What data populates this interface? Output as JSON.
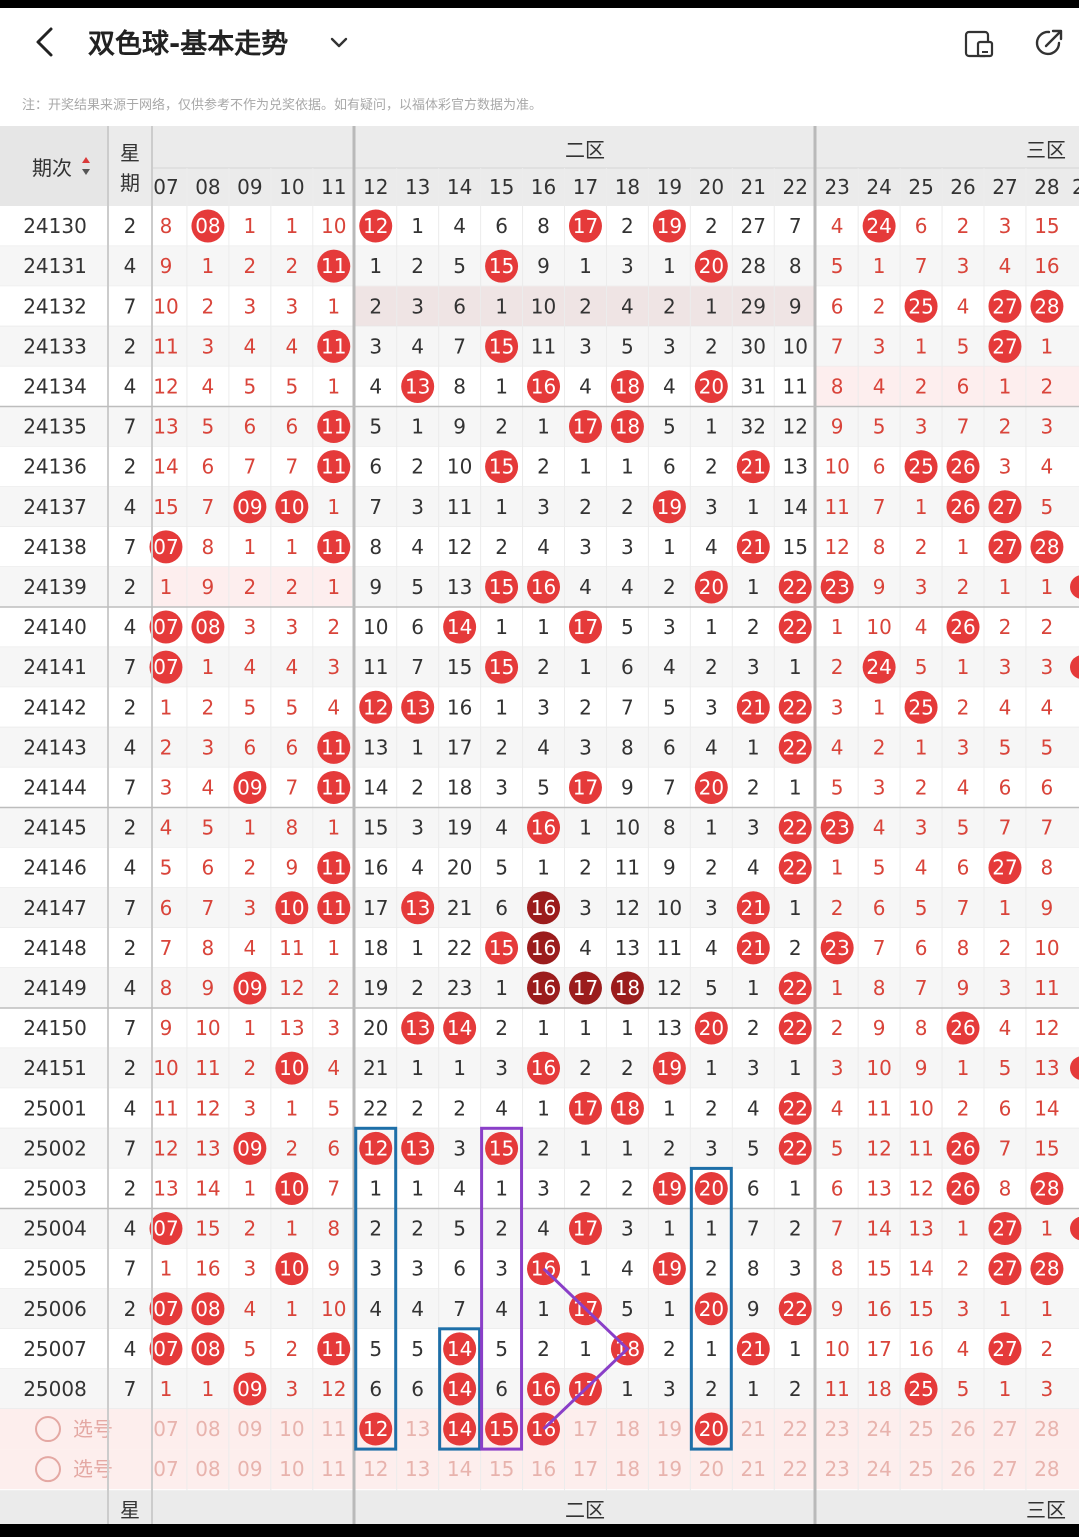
{
  "header": {
    "title": "双色球-基本走势",
    "note": "注：开奖结果来源于网络，仅供参考不作为兑奖依据。如有疑问，以福体彩官方数据为准。",
    "icons": [
      "back-icon",
      "chevron-down-icon",
      "phone-layout-icon",
      "share-icon"
    ]
  },
  "table": {
    "col_period": "期次",
    "col_week": [
      "星",
      "期"
    ],
    "zone2": "二区",
    "zone3": "三区",
    "numbers": [
      "07",
      "08",
      "09",
      "10",
      "11",
      "12",
      "13",
      "14",
      "15",
      "16",
      "17",
      "18",
      "19",
      "20",
      "21",
      "22",
      "23",
      "24",
      "25",
      "26",
      "27",
      "28"
    ],
    "select_label": "选号",
    "footer_week": "星",
    "footer_period": "-"
  },
  "colors": {
    "ball": "#e53a3a",
    "ball_dark": "#9b1c1c",
    "text_red": "#d9443a",
    "box_blue": "#1e6fa8",
    "box_purple": "#8a3fc8"
  },
  "rows": [
    {
      "period": "24130",
      "week": "2",
      "cells": [
        "8",
        "08",
        "1",
        "1",
        "10",
        "12",
        "1",
        "4",
        "6",
        "8",
        "17",
        "2",
        "19",
        "2",
        "27",
        "7",
        "4",
        "24",
        "6",
        "2",
        "3",
        "15"
      ]
    },
    {
      "period": "24131",
      "week": "4",
      "cells": [
        "9",
        "1",
        "2",
        "2",
        "11",
        "1",
        "2",
        "5",
        "15",
        "9",
        "1",
        "3",
        "1",
        "20",
        "28",
        "8",
        "5",
        "1",
        "7",
        "3",
        "4",
        "16"
      ]
    },
    {
      "period": "24132",
      "week": "7",
      "cells": [
        "10",
        "2",
        "3",
        "3",
        "1",
        "2",
        "3",
        "6",
        "1",
        "10",
        "2",
        "4",
        "2",
        "1",
        "29",
        "9",
        "6",
        "2",
        "25",
        "4",
        "27",
        "28"
      ]
    },
    {
      "period": "24133",
      "week": "2",
      "cells": [
        "11",
        "3",
        "4",
        "4",
        "11",
        "3",
        "4",
        "7",
        "15",
        "11",
        "3",
        "5",
        "3",
        "2",
        "30",
        "10",
        "7",
        "3",
        "1",
        "5",
        "27",
        "1"
      ]
    },
    {
      "period": "24134",
      "week": "4",
      "cells": [
        "12",
        "4",
        "5",
        "5",
        "1",
        "4",
        "13",
        "8",
        "1",
        "16",
        "4",
        "18",
        "4",
        "20",
        "31",
        "11",
        "8",
        "4",
        "2",
        "6",
        "1",
        "2"
      ]
    },
    {
      "period": "24135",
      "week": "7",
      "cells": [
        "13",
        "5",
        "6",
        "6",
        "11",
        "5",
        "1",
        "9",
        "2",
        "1",
        "17",
        "18",
        "5",
        "1",
        "32",
        "12",
        "9",
        "5",
        "3",
        "7",
        "2",
        "3"
      ]
    },
    {
      "period": "24136",
      "week": "2",
      "cells": [
        "14",
        "6",
        "7",
        "7",
        "11",
        "6",
        "2",
        "10",
        "15",
        "2",
        "1",
        "1",
        "6",
        "2",
        "21",
        "13",
        "10",
        "6",
        "25",
        "26",
        "3",
        "4"
      ]
    },
    {
      "period": "24137",
      "week": "4",
      "cells": [
        "15",
        "7",
        "09",
        "10",
        "1",
        "7",
        "3",
        "11",
        "1",
        "3",
        "2",
        "2",
        "19",
        "3",
        "1",
        "14",
        "11",
        "7",
        "1",
        "26",
        "27",
        "5"
      ]
    },
    {
      "period": "24138",
      "week": "7",
      "cells": [
        "07",
        "8",
        "1",
        "1",
        "11",
        "8",
        "4",
        "12",
        "2",
        "4",
        "3",
        "3",
        "1",
        "4",
        "21",
        "15",
        "12",
        "8",
        "2",
        "1",
        "27",
        "28"
      ]
    },
    {
      "period": "24139",
      "week": "2",
      "cells": [
        "1",
        "9",
        "2",
        "2",
        "1",
        "9",
        "5",
        "13",
        "15",
        "16",
        "4",
        "4",
        "2",
        "20",
        "1",
        "22",
        "23",
        "9",
        "3",
        "2",
        "1",
        "1"
      ]
    },
    {
      "period": "24140",
      "week": "4",
      "cells": [
        "07",
        "08",
        "3",
        "3",
        "2",
        "10",
        "6",
        "14",
        "1",
        "1",
        "17",
        "5",
        "3",
        "1",
        "2",
        "22",
        "1",
        "10",
        "4",
        "26",
        "2",
        "2"
      ]
    },
    {
      "period": "24141",
      "week": "7",
      "cells": [
        "07",
        "1",
        "4",
        "4",
        "3",
        "11",
        "7",
        "15",
        "15",
        "2",
        "1",
        "6",
        "4",
        "2",
        "3",
        "1",
        "2",
        "24",
        "5",
        "1",
        "3",
        "3"
      ]
    },
    {
      "period": "24142",
      "week": "2",
      "cells": [
        "1",
        "2",
        "5",
        "5",
        "4",
        "12",
        "13",
        "16",
        "1",
        "3",
        "2",
        "7",
        "5",
        "3",
        "21",
        "22",
        "3",
        "1",
        "25",
        "2",
        "4",
        "4"
      ]
    },
    {
      "period": "24143",
      "week": "4",
      "cells": [
        "2",
        "3",
        "6",
        "6",
        "11",
        "13",
        "1",
        "17",
        "2",
        "4",
        "3",
        "8",
        "6",
        "4",
        "1",
        "22",
        "4",
        "2",
        "1",
        "3",
        "5",
        "5"
      ]
    },
    {
      "period": "24144",
      "week": "7",
      "cells": [
        "3",
        "4",
        "09",
        "7",
        "11",
        "14",
        "2",
        "18",
        "3",
        "5",
        "17",
        "9",
        "7",
        "20",
        "2",
        "1",
        "5",
        "3",
        "2",
        "4",
        "6",
        "6"
      ]
    },
    {
      "period": "24145",
      "week": "2",
      "cells": [
        "4",
        "5",
        "1",
        "8",
        "1",
        "15",
        "3",
        "19",
        "4",
        "16",
        "1",
        "10",
        "8",
        "1",
        "3",
        "22",
        "23",
        "4",
        "3",
        "5",
        "7",
        "7"
      ]
    },
    {
      "period": "24146",
      "week": "4",
      "cells": [
        "5",
        "6",
        "2",
        "9",
        "11",
        "16",
        "4",
        "20",
        "5",
        "1",
        "2",
        "11",
        "9",
        "2",
        "4",
        "22",
        "1",
        "5",
        "4",
        "6",
        "27",
        "8"
      ]
    },
    {
      "period": "24147",
      "week": "7",
      "cells": [
        "6",
        "7",
        "3",
        "10",
        "11",
        "17",
        "13",
        "21",
        "6",
        "16",
        "3",
        "12",
        "10",
        "3",
        "21",
        "1",
        "2",
        "6",
        "5",
        "7",
        "1",
        "9"
      ]
    },
    {
      "period": "24148",
      "week": "2",
      "cells": [
        "7",
        "8",
        "4",
        "11",
        "1",
        "18",
        "1",
        "22",
        "15",
        "16",
        "4",
        "13",
        "11",
        "4",
        "21",
        "2",
        "23",
        "7",
        "6",
        "8",
        "2",
        "10"
      ]
    },
    {
      "period": "24149",
      "week": "4",
      "cells": [
        "8",
        "9",
        "09",
        "12",
        "2",
        "19",
        "2",
        "23",
        "1",
        "16",
        "17",
        "18",
        "12",
        "5",
        "1",
        "22",
        "1",
        "8",
        "7",
        "9",
        "3",
        "11"
      ]
    },
    {
      "period": "24150",
      "week": "7",
      "cells": [
        "9",
        "10",
        "1",
        "13",
        "3",
        "20",
        "13",
        "14",
        "2",
        "1",
        "1",
        "1",
        "13",
        "20",
        "2",
        "22",
        "2",
        "9",
        "8",
        "26",
        "4",
        "12"
      ]
    },
    {
      "period": "24151",
      "week": "2",
      "cells": [
        "10",
        "11",
        "2",
        "10",
        "4",
        "21",
        "1",
        "1",
        "3",
        "16",
        "2",
        "2",
        "19",
        "1",
        "3",
        "1",
        "3",
        "10",
        "9",
        "1",
        "5",
        "13"
      ]
    },
    {
      "period": "25001",
      "week": "4",
      "cells": [
        "11",
        "12",
        "3",
        "1",
        "5",
        "22",
        "2",
        "2",
        "4",
        "1",
        "17",
        "18",
        "1",
        "2",
        "4",
        "22",
        "4",
        "11",
        "10",
        "2",
        "6",
        "14"
      ]
    },
    {
      "period": "25002",
      "week": "7",
      "cells": [
        "12",
        "13",
        "09",
        "2",
        "6",
        "12",
        "13",
        "3",
        "15",
        "2",
        "1",
        "1",
        "2",
        "3",
        "5",
        "22",
        "5",
        "12",
        "11",
        "26",
        "7",
        "15"
      ]
    },
    {
      "period": "25003",
      "week": "2",
      "cells": [
        "13",
        "14",
        "1",
        "10",
        "7",
        "1",
        "1",
        "4",
        "1",
        "3",
        "2",
        "2",
        "19",
        "20",
        "6",
        "1",
        "6",
        "13",
        "12",
        "26",
        "8",
        "28"
      ]
    },
    {
      "period": "25004",
      "week": "4",
      "cells": [
        "07",
        "15",
        "2",
        "1",
        "8",
        "2",
        "2",
        "5",
        "2",
        "4",
        "17",
        "3",
        "1",
        "1",
        "7",
        "2",
        "7",
        "14",
        "13",
        "1",
        "27",
        "1"
      ]
    },
    {
      "period": "25005",
      "week": "7",
      "cells": [
        "1",
        "16",
        "3",
        "10",
        "9",
        "3",
        "3",
        "6",
        "3",
        "16",
        "1",
        "4",
        "19",
        "2",
        "8",
        "3",
        "8",
        "15",
        "14",
        "2",
        "27",
        "28"
      ]
    },
    {
      "period": "25006",
      "week": "2",
      "cells": [
        "07",
        "08",
        "4",
        "1",
        "10",
        "4",
        "4",
        "7",
        "4",
        "1",
        "17",
        "5",
        "1",
        "20",
        "9",
        "22",
        "9",
        "16",
        "15",
        "3",
        "1",
        "1"
      ]
    },
    {
      "period": "25007",
      "week": "4",
      "cells": [
        "07",
        "08",
        "5",
        "2",
        "11",
        "5",
        "5",
        "14",
        "5",
        "2",
        "1",
        "18",
        "2",
        "1",
        "21",
        "1",
        "10",
        "17",
        "16",
        "4",
        "27",
        "2"
      ]
    },
    {
      "period": "25008",
      "week": "7",
      "cells": [
        "1",
        "1",
        "09",
        "3",
        "12",
        "6",
        "6",
        "14",
        "6",
        "16",
        "17",
        "1",
        "3",
        "2",
        "1",
        "2",
        "11",
        "18",
        "25",
        "5",
        "1",
        "3"
      ]
    }
  ],
  "select_rows": [
    {
      "selected": [
        "12",
        "14",
        "15",
        "16",
        "20"
      ]
    },
    {
      "selected": []
    }
  ]
}
